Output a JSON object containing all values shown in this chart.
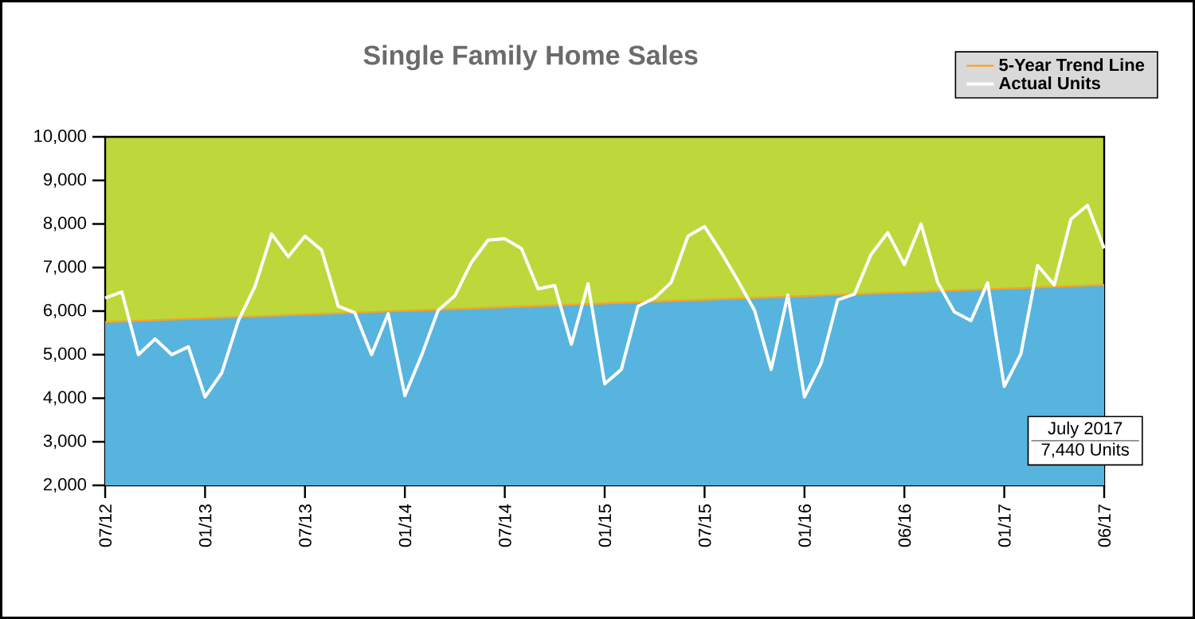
{
  "chart_data": {
    "type": "line",
    "title": "Single Family Home Sales",
    "categories": [
      "07/12",
      null,
      null,
      null,
      null,
      null,
      "01/13",
      null,
      null,
      null,
      null,
      null,
      "07/13",
      null,
      null,
      null,
      null,
      null,
      "01/14",
      null,
      null,
      null,
      null,
      null,
      "07/14",
      null,
      null,
      null,
      null,
      null,
      "01/15",
      null,
      null,
      null,
      null,
      null,
      "07/15",
      null,
      null,
      null,
      null,
      null,
      "01/16",
      null,
      null,
      null,
      null,
      null,
      "06/16",
      null,
      null,
      null,
      null,
      null,
      "01/17",
      null,
      null,
      null,
      null,
      null,
      "06/17"
    ],
    "series": [
      {
        "type": "area",
        "color": "#56b4df",
        "values": [
          5750,
          null,
          null,
          null,
          null,
          null,
          null,
          null,
          null,
          null,
          null,
          null,
          null,
          null,
          null,
          null,
          null,
          null,
          null,
          null,
          null,
          null,
          null,
          null,
          null,
          null,
          null,
          null,
          null,
          null,
          null,
          null,
          null,
          null,
          null,
          null,
          null,
          null,
          null,
          null,
          null,
          null,
          null,
          null,
          null,
          null,
          null,
          null,
          null,
          null,
          null,
          null,
          null,
          null,
          null,
          null,
          null,
          null,
          null,
          null,
          6600
        ]
      },
      {
        "name": "5-Year Trend Line",
        "color": "#f7a325",
        "values": [
          5750,
          null,
          null,
          null,
          null,
          null,
          null,
          null,
          null,
          null,
          null,
          null,
          null,
          null,
          null,
          null,
          null,
          null,
          null,
          null,
          null,
          null,
          null,
          null,
          null,
          null,
          null,
          null,
          null,
          null,
          null,
          null,
          null,
          null,
          null,
          null,
          null,
          null,
          null,
          null,
          null,
          null,
          null,
          null,
          null,
          null,
          null,
          null,
          null,
          null,
          null,
          null,
          null,
          null,
          null,
          null,
          null,
          null,
          null,
          null,
          6600
        ]
      },
      {
        "name": "Actual Units",
        "color": "#ffffff",
        "values": [
          6300,
          6440,
          5000,
          5360,
          5000,
          5180,
          4030,
          4580,
          5780,
          6570,
          7770,
          7250,
          7720,
          7400,
          6110,
          5960,
          5000,
          5940,
          4060,
          4980,
          6020,
          6350,
          7120,
          7630,
          7660,
          7440,
          6510,
          6590,
          5240,
          6630,
          4330,
          4660,
          6110,
          6300,
          6660,
          7720,
          7940,
          7350,
          6700,
          6020,
          4660,
          6370,
          4030,
          4800,
          6260,
          6390,
          7300,
          7800,
          7070,
          8000,
          6660,
          5980,
          5780,
          6650,
          4270,
          5020,
          7050,
          6600,
          8110,
          8430,
          7440
        ]
      }
    ],
    "ylim": [
      2000,
      10000
    ],
    "yticks": [
      {
        "value": 2000,
        "label": "2,000"
      },
      {
        "value": 3000,
        "label": "3,000"
      },
      {
        "value": 4000,
        "label": "4,000"
      },
      {
        "value": 5000,
        "label": "5,000"
      },
      {
        "value": 6000,
        "label": "6,000"
      },
      {
        "value": 7000,
        "label": "7,000"
      },
      {
        "value": 8000,
        "label": "8,000"
      },
      {
        "value": 9000,
        "label": "9,000"
      },
      {
        "value": 10000,
        "label": "10,000"
      }
    ],
    "annotations": [
      "July 2017",
      "7,440 Units"
    ],
    "legend": "top right"
  }
}
